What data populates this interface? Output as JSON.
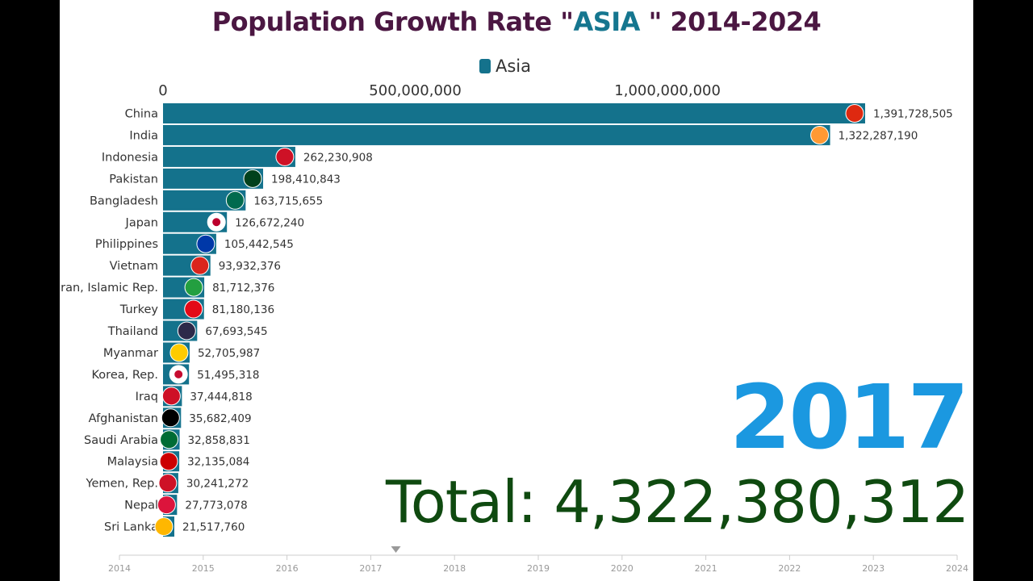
{
  "title": {
    "prefix": "Population Growth Rate \"",
    "highlight": "ASIA ",
    "suffix": "\" 2014-2024"
  },
  "legend": {
    "label": "Asia",
    "color": "#14728c"
  },
  "current_year": "2017",
  "total": "Total: 4,322,380,312",
  "colors": {
    "bar": "#14728c",
    "year": "#1b98e0",
    "total": "#0f4a10",
    "title": "#4b1742",
    "title_highlight": "#15768f"
  },
  "chart_data": {
    "type": "bar",
    "orientation": "horizontal",
    "title": "Population Growth Rate \"ASIA \" 2014-2024",
    "series_name": "Asia",
    "xlim": [
      0,
      1391728505
    ],
    "x_ticks": [
      {
        "value": 0,
        "label": "0"
      },
      {
        "value": 500000000,
        "label": "500,000,000"
      },
      {
        "value": 1000000000,
        "label": "1,000,000,000"
      }
    ],
    "grid": false,
    "legend_position": "top",
    "categories": [
      "China",
      "India",
      "Indonesia",
      "Pakistan",
      "Bangladesh",
      "Japan",
      "Philippines",
      "Vietnam",
      "Iran, Islamic Rep.",
      "Turkey",
      "Thailand",
      "Myanmar",
      "Korea, Rep.",
      "Iraq",
      "Afghanistan",
      "Saudi Arabia",
      "Malaysia",
      "Yemen, Rep.",
      "Nepal",
      "Sri Lanka"
    ],
    "values": [
      1391728505,
      1322287190,
      262230908,
      198410843,
      163715655,
      126672240,
      105442545,
      93932376,
      81712376,
      81180136,
      67693545,
      52705987,
      51495318,
      37444818,
      35682409,
      32858831,
      32135084,
      30241272,
      27773078,
      21517760
    ],
    "value_labels": [
      "1,391,728,505",
      "1,322,287,190",
      "262,230,908",
      "198,410,843",
      "163,715,655",
      "126,672,240",
      "105,442,545",
      "93,932,376",
      "81,712,376",
      "81,180,136",
      "67,693,545",
      "52,705,987",
      "51,495,318",
      "37,444,818",
      "35,682,409",
      "32,858,831",
      "32,135,084",
      "30,241,272",
      "27,773,078",
      "21,517,760"
    ],
    "flag_icons": [
      "flag-china-icon",
      "flag-india-icon",
      "flag-indonesia-icon",
      "flag-pakistan-icon",
      "flag-bangladesh-icon",
      "flag-japan-icon",
      "flag-philippines-icon",
      "flag-vietnam-icon",
      "flag-iran-icon",
      "flag-turkey-icon",
      "flag-thailand-icon",
      "flag-myanmar-icon",
      "flag-korea-icon",
      "flag-iraq-icon",
      "flag-afghanistan-icon",
      "flag-saudi-arabia-icon",
      "flag-malaysia-icon",
      "flag-yemen-icon",
      "flag-nepal-icon",
      "flag-sri-lanka-icon"
    ],
    "timeline": {
      "years": [
        "2014",
        "2015",
        "2016",
        "2017",
        "2018",
        "2019",
        "2020",
        "2021",
        "2022",
        "2023",
        "2024"
      ],
      "current": 2017.3
    }
  }
}
